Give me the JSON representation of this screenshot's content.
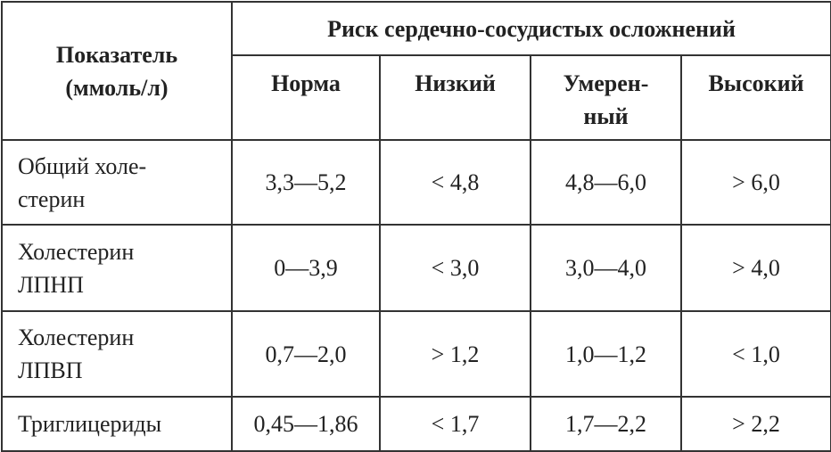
{
  "header": {
    "indicator": "Показатель\n(ммоль/л)",
    "risk": "Риск сердечно-сосудистых осложнений",
    "levels": [
      "Норма",
      "Низкий",
      "Умерен-\nный",
      "Высокий"
    ]
  },
  "rows": [
    {
      "label": "Общий холе-\nстерин",
      "values": [
        "3,3—5,2",
        "< 4,8",
        "4,8—6,0",
        "> 6,0"
      ]
    },
    {
      "label": "Холестерин\nЛПНП",
      "values": [
        "0—3,9",
        "< 3,0",
        "3,0—4,0",
        "> 4,0"
      ]
    },
    {
      "label": "Холестерин\nЛПВП",
      "values": [
        "0,7—2,0",
        "> 1,2",
        "1,0—1,2",
        "< 1,0"
      ]
    },
    {
      "label": "Триглицериды",
      "values": [
        "0,45—1,86",
        "< 1,7",
        "1,7—2,2",
        "> 2,2"
      ]
    }
  ]
}
